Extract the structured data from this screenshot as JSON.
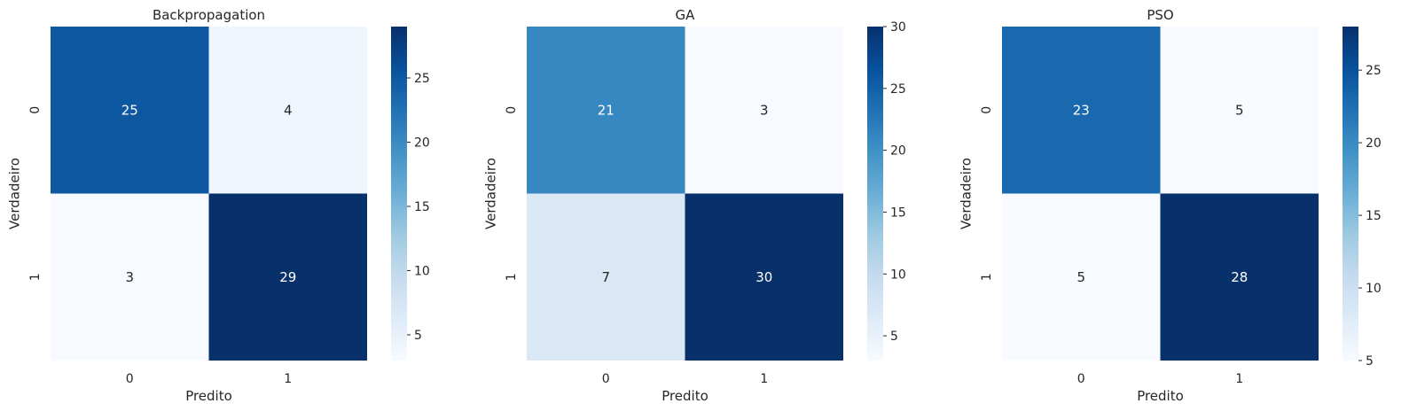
{
  "chart_data": [
    {
      "type": "heatmap",
      "title": "Backpropagation",
      "xlabel": "Predito",
      "ylabel": "Verdadeiro",
      "x_categories": [
        "0",
        "1"
      ],
      "y_categories": [
        "0",
        "1"
      ],
      "values": [
        [
          25,
          4
        ],
        [
          3,
          29
        ]
      ],
      "colormap": "Blues",
      "colorbar": {
        "min": 3,
        "max": 29,
        "ticks": [
          "5",
          "10",
          "15",
          "20",
          "25"
        ]
      }
    },
    {
      "type": "heatmap",
      "title": "GA",
      "xlabel": "Predito",
      "ylabel": "Verdadeiro",
      "x_categories": [
        "0",
        "1"
      ],
      "y_categories": [
        "0",
        "1"
      ],
      "values": [
        [
          21,
          3
        ],
        [
          7,
          30
        ]
      ],
      "colormap": "Blues",
      "colorbar": {
        "min": 3,
        "max": 30,
        "ticks": [
          "5",
          "10",
          "15",
          "20",
          "25",
          "30"
        ]
      }
    },
    {
      "type": "heatmap",
      "title": "PSO",
      "xlabel": "Predito",
      "ylabel": "Verdadeiro",
      "x_categories": [
        "0",
        "1"
      ],
      "y_categories": [
        "0",
        "1"
      ],
      "values": [
        [
          23,
          5
        ],
        [
          5,
          28
        ]
      ],
      "colormap": "Blues",
      "colorbar": {
        "min": 5,
        "max": 28,
        "ticks": [
          "5",
          "10",
          "15",
          "20",
          "25"
        ]
      }
    }
  ],
  "colors": {
    "text_dark": "#262626",
    "text_light": "#ffffff",
    "blues_scale": [
      "#f7fbff",
      "#deebf7",
      "#c6dbef",
      "#9ecae1",
      "#6baed6",
      "#4292c6",
      "#2171b5",
      "#08519c",
      "#08306b"
    ]
  }
}
